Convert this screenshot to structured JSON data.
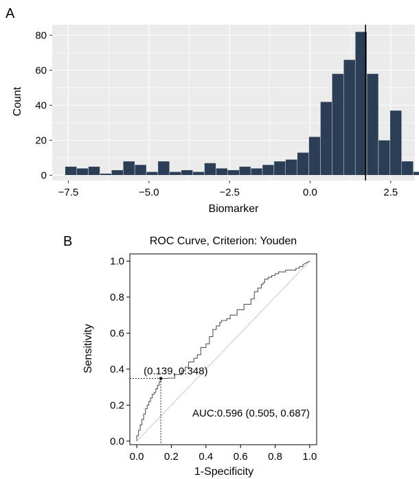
{
  "panel_labels": {
    "a": "A",
    "b": "B"
  },
  "colors": {
    "bar_fill": "#2c3e55",
    "panel_bg": "#ebebeb",
    "grid": "#ffffff",
    "cutoff_line": "#000000",
    "roc_line": "#555555",
    "diagonal": "#c8c8c8"
  },
  "chart_data": [
    {
      "type": "bar",
      "title": "",
      "xlabel": "Biomarker",
      "ylabel": "Count",
      "xlim": [
        -8.0,
        3.25
      ],
      "ylim": [
        -3,
        86
      ],
      "bin_width": 0.36,
      "bin_start": -7.6,
      "values": [
        5,
        4,
        5,
        1,
        3,
        8,
        6,
        2,
        8,
        2,
        3,
        2,
        7,
        4,
        3,
        5,
        4,
        6,
        8,
        9,
        13,
        22,
        42,
        58,
        66,
        82,
        58,
        20,
        37,
        8,
        2
      ],
      "cutoff_x": 1.72,
      "x_ticks": [
        -7.5,
        -5.0,
        -2.5,
        0.0,
        2.5
      ],
      "x_tick_labels": [
        "−7.5",
        "−5.0",
        "−2.5",
        "0.0",
        "2.5"
      ],
      "y_ticks": [
        0,
        20,
        40,
        60,
        80
      ],
      "y_tick_labels": [
        "0",
        "20",
        "40",
        "60",
        "80"
      ],
      "grid": true
    },
    {
      "type": "line",
      "title": "ROC Curve, Criterion: Youden",
      "xlabel": "1-Specificity",
      "ylabel": "Sensitivity",
      "xlim": [
        -0.04,
        1.04
      ],
      "ylim": [
        -0.02,
        1.04
      ],
      "x_ticks": [
        0.0,
        0.2,
        0.4,
        0.6,
        0.8,
        1.0
      ],
      "x_tick_labels": [
        "0.0",
        "0.2",
        "0.4",
        "0.6",
        "0.8",
        "1.0"
      ],
      "y_ticks": [
        0.0,
        0.2,
        0.4,
        0.6,
        0.8,
        1.0
      ],
      "y_tick_labels": [
        "0.0",
        "0.2",
        "0.4",
        "0.6",
        "0.8",
        "1.0"
      ],
      "series": [
        {
          "x": [
            0.0,
            0.0,
            0.01,
            0.01,
            0.02,
            0.02,
            0.03,
            0.03,
            0.04,
            0.04,
            0.05,
            0.05,
            0.06,
            0.06,
            0.07,
            0.07,
            0.08,
            0.08,
            0.09,
            0.09,
            0.1,
            0.1,
            0.11,
            0.11,
            0.12,
            0.12,
            0.13,
            0.13,
            0.139,
            0.139,
            0.18,
            0.18,
            0.22,
            0.22,
            0.26,
            0.26,
            0.28,
            0.28,
            0.3,
            0.3,
            0.33,
            0.33,
            0.35,
            0.35,
            0.37,
            0.37,
            0.4,
            0.4,
            0.42,
            0.42,
            0.44,
            0.44,
            0.46,
            0.46,
            0.48,
            0.48,
            0.49,
            0.49,
            0.5,
            0.5,
            0.52,
            0.52,
            0.54,
            0.54,
            0.58,
            0.58,
            0.62,
            0.62,
            0.66,
            0.66,
            0.68,
            0.68,
            0.7,
            0.7,
            0.72,
            0.72,
            0.73,
            0.73,
            0.74,
            0.74,
            0.76,
            0.76,
            0.78,
            0.78,
            0.8,
            0.8,
            0.82,
            0.82,
            0.86,
            0.86,
            0.9,
            0.9,
            0.92,
            0.92,
            0.94,
            0.94,
            0.96,
            0.96,
            1.0
          ],
          "y": [
            0.0,
            0.03,
            0.03,
            0.06,
            0.06,
            0.09,
            0.09,
            0.12,
            0.12,
            0.15,
            0.15,
            0.18,
            0.18,
            0.2,
            0.2,
            0.22,
            0.22,
            0.24,
            0.24,
            0.26,
            0.26,
            0.27,
            0.27,
            0.29,
            0.29,
            0.31,
            0.31,
            0.33,
            0.33,
            0.348,
            0.348,
            0.35,
            0.35,
            0.37,
            0.37,
            0.39,
            0.39,
            0.41,
            0.41,
            0.44,
            0.44,
            0.46,
            0.46,
            0.48,
            0.48,
            0.52,
            0.52,
            0.54,
            0.54,
            0.58,
            0.58,
            0.62,
            0.62,
            0.64,
            0.64,
            0.66,
            0.66,
            0.67,
            0.67,
            0.67,
            0.67,
            0.68,
            0.68,
            0.7,
            0.7,
            0.73,
            0.73,
            0.76,
            0.76,
            0.79,
            0.79,
            0.83,
            0.83,
            0.85,
            0.85,
            0.87,
            0.87,
            0.88,
            0.88,
            0.9,
            0.9,
            0.91,
            0.91,
            0.92,
            0.92,
            0.93,
            0.93,
            0.94,
            0.94,
            0.95,
            0.95,
            0.95,
            0.95,
            0.96,
            0.96,
            0.97,
            0.97,
            0.98,
            1.0
          ]
        }
      ],
      "youden_point": {
        "x": 0.139,
        "y": 0.348,
        "label": "(0.139, 0.348)"
      },
      "auc_label": "AUC:0.596 (0.505, 0.687)"
    }
  ]
}
